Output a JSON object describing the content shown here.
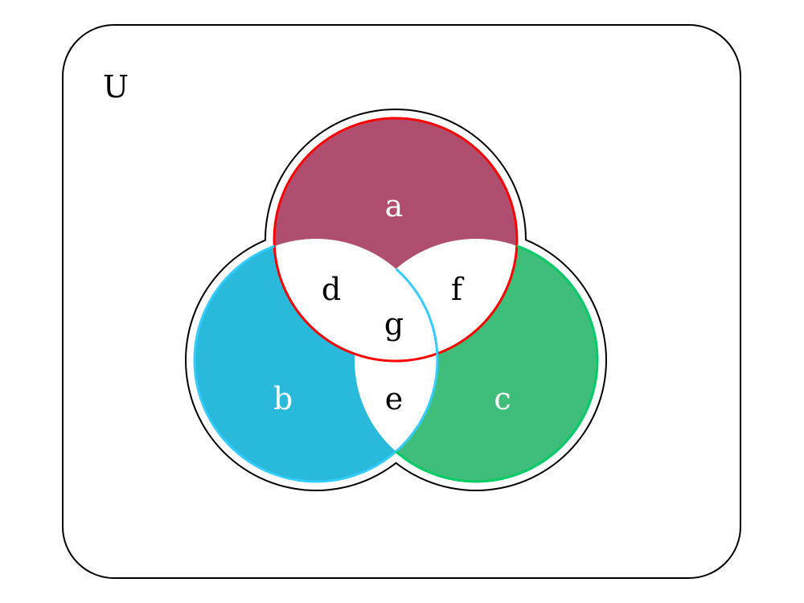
{
  "universe": {
    "label": "U"
  },
  "sets": [
    {
      "id": "a",
      "label": "a",
      "fill": "#b04e6f",
      "stroke": "#ff0000",
      "text_color": "#ffffff"
    },
    {
      "id": "b",
      "label": "b",
      "fill": "#29b9da",
      "stroke": "#33ccff",
      "text_color": "#ffffff"
    },
    {
      "id": "c",
      "label": "c",
      "fill": "#3fbe7b",
      "stroke": "#00cc66",
      "text_color": "#ffffff"
    }
  ],
  "intersections": [
    {
      "id": "d",
      "label": "d",
      "sets": [
        "a",
        "b"
      ]
    },
    {
      "id": "e",
      "label": "e",
      "sets": [
        "b",
        "c"
      ]
    },
    {
      "id": "f",
      "label": "f",
      "sets": [
        "a",
        "c"
      ]
    },
    {
      "id": "g",
      "label": "g",
      "sets": [
        "a",
        "b",
        "c"
      ]
    }
  ],
  "colors": {
    "outline": "#000000",
    "intersection_fill": "#ffffff",
    "intersection_text": "#000000"
  }
}
